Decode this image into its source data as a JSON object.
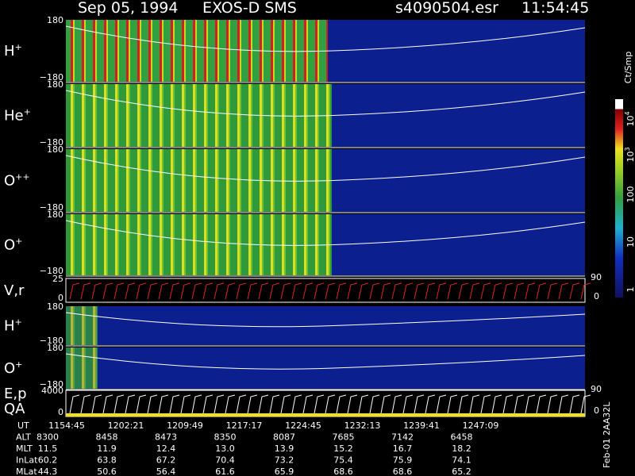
{
  "header": {
    "date": "Sep 05, 1994",
    "instrument": "EXOS-D SMS",
    "file": "s4090504.esr",
    "time": "11:54:45"
  },
  "panels": [
    {
      "label": "H",
      "sup": "+",
      "top": "180",
      "bottom": "−180"
    },
    {
      "label": "He",
      "sup": "+",
      "top": "180",
      "bottom": "−180"
    },
    {
      "label": "O",
      "sup": "++",
      "top": "180",
      "bottom": "−180"
    },
    {
      "label": "O",
      "sup": "+",
      "top": "180",
      "bottom": "−180"
    },
    {
      "label": "V,r",
      "top": "25",
      "bottom": "0",
      "right_top": "90",
      "right_bottom": "0"
    },
    {
      "label": "H",
      "sup": "+",
      "top": "180",
      "bottom": "−180"
    },
    {
      "label": "O",
      "sup": "+",
      "top": "180",
      "bottom": "−180"
    },
    {
      "label": "E,p",
      "label2": "QA",
      "top": "4000",
      "bottom": "0",
      "right_top": "90",
      "right_bottom": "0"
    }
  ],
  "colorbar": {
    "unit": "Ct/Smp",
    "labels": [
      {
        "base": "10",
        "exp": "4"
      },
      {
        "base": "10",
        "exp": "3"
      },
      {
        "base": "100"
      },
      {
        "base": "10"
      },
      {
        "base": "1"
      }
    ]
  },
  "table": {
    "rows": [
      {
        "name": "UT",
        "values": [
          "1154:45",
          "1202:21",
          "1209:49",
          "1217:17",
          "1224:45",
          "1232:13",
          "1239:41",
          "1247:09"
        ]
      },
      {
        "name": "ALT",
        "values": [
          "8300",
          "8458",
          "8473",
          "8350",
          "8087",
          "7685",
          "7142",
          "6458"
        ]
      },
      {
        "name": "MLT",
        "values": [
          "11.5",
          "11.9",
          "12.4",
          "13.0",
          "13.9",
          "15.2",
          "16.7",
          "18.2"
        ]
      },
      {
        "name": "InLat",
        "values": [
          "60.2",
          "63.8",
          "67.2",
          "70.4",
          "73.2",
          "75.4",
          "75.9",
          "74.1"
        ]
      },
      {
        "name": "MLat",
        "values": [
          "44.3",
          "50.6",
          "56.4",
          "61.6",
          "65.9",
          "68.6",
          "68.6",
          "65.2"
        ]
      }
    ]
  },
  "footer": "Feb-01 2AA32L"
}
